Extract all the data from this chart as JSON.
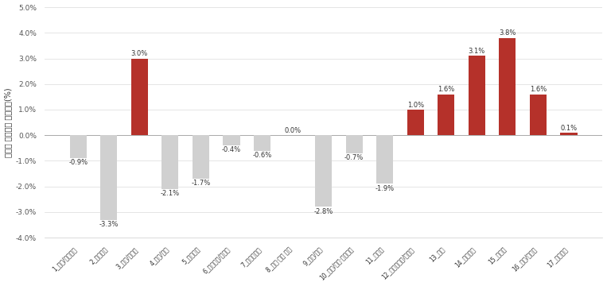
{
  "categories": [
    "1_통신/네트워크",
    "2_인공지능",
    "3_센서/카메라",
    "4_의료/진단",
    "5_자율주행",
    "6_무선통신/시스템",
    "7_디스플레이",
    "8_안전·재난 평가",
    "9_보안/인증",
    "10_로봇/영상·음성인식",
    "11_블랫폼",
    "12_스마트팩토/에너지",
    "13_양자",
    "14_빅데이터",
    "15_반도체",
    "16_환경/에너지",
    "17_인력양성"
  ],
  "values": [
    -0.9,
    -3.3,
    3.0,
    -2.1,
    -1.7,
    -0.4,
    -0.6,
    0.0,
    -2.8,
    -0.7,
    -1.9,
    1.0,
    1.6,
    3.1,
    3.8,
    1.6,
    0.1
  ],
  "bar_colors_positive": "#b5312a",
  "bar_colors_negative": "#d0d0d0",
  "ylabel": "전지역 평균대비 비중차이(%)",
  "ylim": [
    -4.0,
    5.0
  ],
  "yticks": [
    -4.0,
    -3.0,
    -2.0,
    -1.0,
    0.0,
    1.0,
    2.0,
    3.0,
    4.0,
    5.0
  ],
  "ytick_labels": [
    "-4.0%",
    "-3.0%",
    "-2.0%",
    "-1.0%",
    "0.0%",
    "1.0%",
    "2.0%",
    "3.0%",
    "4.0%",
    "5.0%"
  ],
  "figsize": [
    7.63,
    3.6
  ],
  "dpi": 100,
  "background_color": "#ffffff",
  "bar_label_fontsize": 6.0,
  "ylabel_fontsize": 7.0,
  "ytick_fontsize": 6.5,
  "xtick_fontsize": 5.5,
  "bar_width": 0.55
}
